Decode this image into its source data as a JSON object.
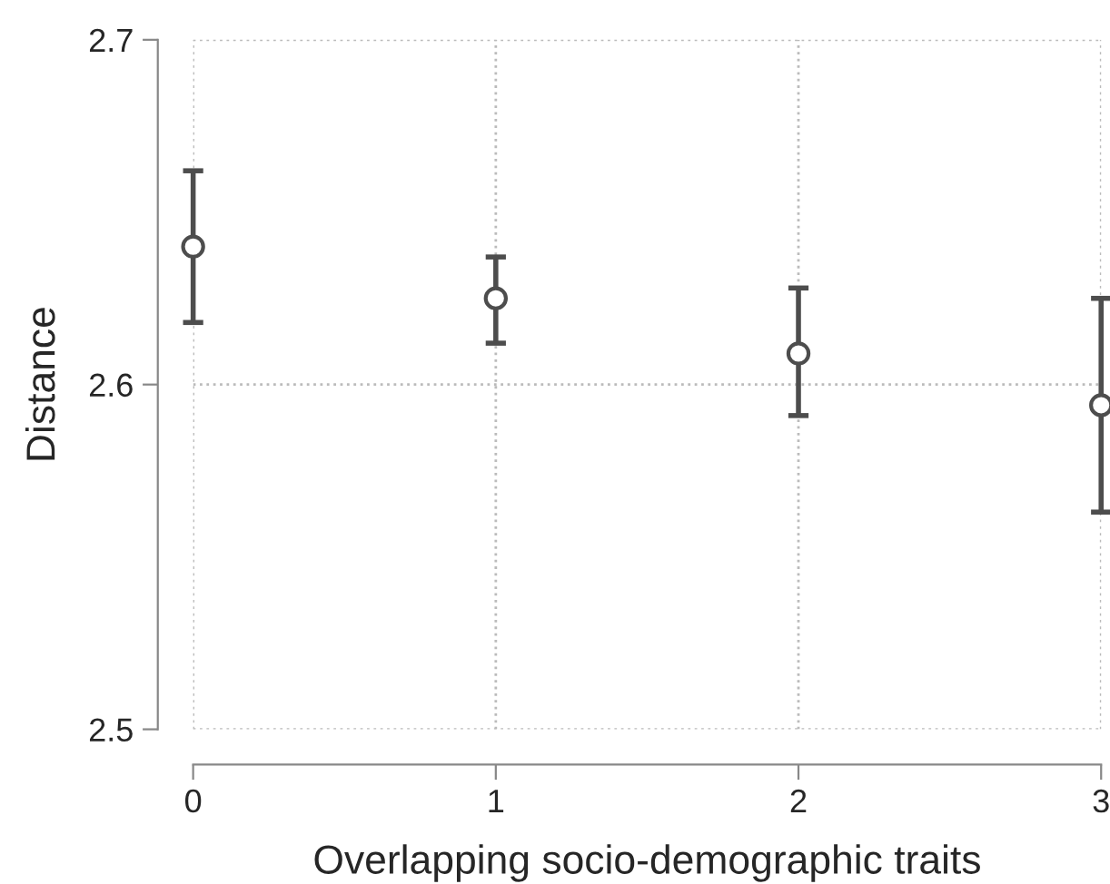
{
  "chart_data": {
    "type": "scatter",
    "xlabel": "Overlapping socio-demographic traits",
    "ylabel": "Distance",
    "x": [
      0,
      1,
      2,
      3
    ],
    "series": [
      {
        "color": "#4d4d4d",
        "values": [
          2.64,
          2.625,
          2.609,
          2.594
        ],
        "errors": [
          [
            2.618,
            2.662
          ],
          [
            2.612,
            2.637
          ],
          [
            2.591,
            2.628
          ],
          [
            2.563,
            2.625
          ]
        ]
      }
    ],
    "xlim": [
      0,
      3
    ],
    "xticks": [
      0,
      1,
      2,
      3
    ],
    "ylim": [
      2.5,
      2.7
    ],
    "yticks": [
      2.5,
      2.6,
      2.7
    ],
    "grid": true,
    "marker": "circle"
  }
}
